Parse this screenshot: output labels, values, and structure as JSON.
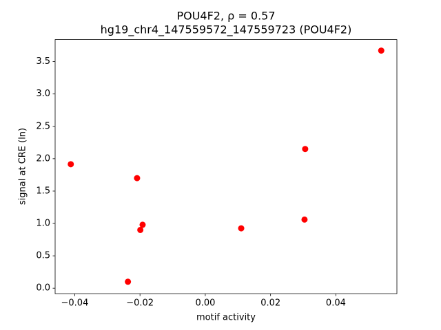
{
  "chart_data": {
    "type": "scatter",
    "title": "POU4F2, ρ = 0.57",
    "subtitle": "hg19_chr4_147559572_147559723 (POU4F2)",
    "xlabel": "motif activity",
    "ylabel": "signal at CRE (ln)",
    "color": "#ff0000",
    "x": [
      -0.0412,
      -0.0209,
      -0.0192,
      -0.0199,
      -0.0237,
      0.011,
      0.0306,
      0.0304,
      0.0539
    ],
    "values": [
      1.915,
      1.7,
      0.98,
      0.9,
      0.1,
      0.925,
      2.15,
      1.06,
      3.67
    ],
    "xlim": [
      -0.046,
      0.0587
    ],
    "ylim": [
      -0.085,
      3.84
    ],
    "xticks": [
      {
        "value": -0.04,
        "label": "−0.04"
      },
      {
        "value": -0.02,
        "label": "−0.02"
      },
      {
        "value": 0,
        "label": "0.00"
      },
      0.02,
      0.04
    ],
    "yticks": [
      {
        "value": 0,
        "label": "0.0"
      },
      0.5,
      {
        "value": 1,
        "label": "1.0"
      },
      1.5,
      {
        "value": 2,
        "label": "2.0"
      },
      2.5,
      {
        "value": 3,
        "label": "3.0"
      },
      3.5
    ]
  }
}
